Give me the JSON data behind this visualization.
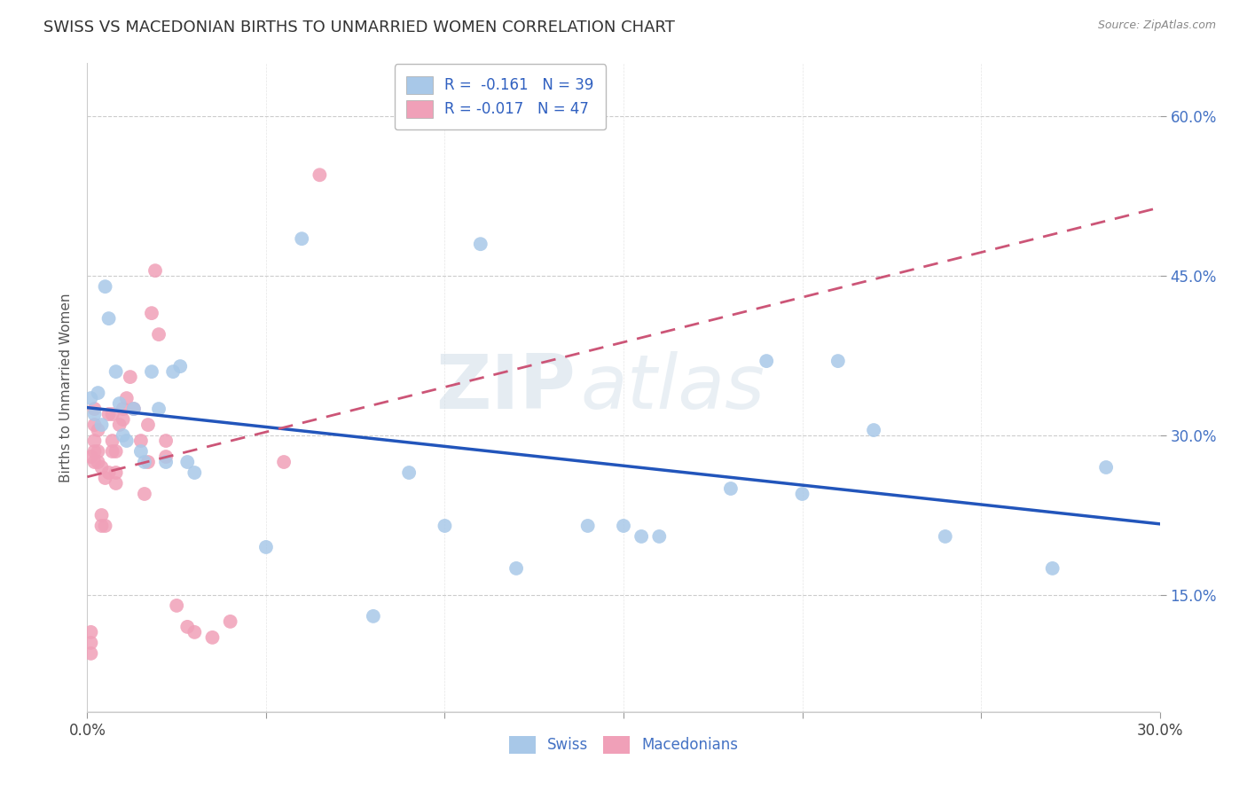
{
  "title": "SWISS VS MACEDONIAN BIRTHS TO UNMARRIED WOMEN CORRELATION CHART",
  "source": "Source: ZipAtlas.com",
  "ylabel": "Births to Unmarried Women",
  "xlim": [
    0.0,
    0.3
  ],
  "ylim": [
    0.04,
    0.65
  ],
  "xticks": [
    0.0,
    0.05,
    0.1,
    0.15,
    0.2,
    0.25,
    0.3
  ],
  "xtick_labels": [
    "0.0%",
    "",
    "",
    "",
    "",
    "",
    "30.0%"
  ],
  "ytick_positions": [
    0.15,
    0.3,
    0.45,
    0.6
  ],
  "ytick_labels": [
    "15.0%",
    "30.0%",
    "45.0%",
    "60.0%"
  ],
  "R_swiss": -0.161,
  "N_swiss": 39,
  "R_macedonian": -0.017,
  "N_macedonian": 47,
  "swiss_color": "#a8c8e8",
  "macedonian_color": "#f0a0b8",
  "trend_swiss_color": "#2255bb",
  "trend_macedonian_color": "#cc5577",
  "background_color": "#ffffff",
  "watermark": "ZIPatlas",
  "swiss_x": [
    0.001,
    0.002,
    0.003,
    0.004,
    0.005,
    0.006,
    0.008,
    0.009,
    0.01,
    0.011,
    0.013,
    0.015,
    0.016,
    0.018,
    0.02,
    0.022,
    0.024,
    0.026,
    0.028,
    0.03,
    0.05,
    0.06,
    0.08,
    0.09,
    0.1,
    0.11,
    0.12,
    0.14,
    0.155,
    0.18,
    0.19,
    0.21,
    0.22,
    0.27,
    0.285,
    0.15,
    0.16,
    0.2,
    0.24
  ],
  "swiss_y": [
    0.335,
    0.32,
    0.34,
    0.31,
    0.44,
    0.41,
    0.36,
    0.33,
    0.3,
    0.295,
    0.325,
    0.285,
    0.275,
    0.36,
    0.325,
    0.275,
    0.36,
    0.365,
    0.275,
    0.265,
    0.195,
    0.485,
    0.13,
    0.265,
    0.215,
    0.48,
    0.175,
    0.215,
    0.205,
    0.25,
    0.37,
    0.37,
    0.305,
    0.175,
    0.27,
    0.215,
    0.205,
    0.245,
    0.205
  ],
  "macedonian_x": [
    0.001,
    0.001,
    0.001,
    0.001,
    0.002,
    0.002,
    0.002,
    0.002,
    0.002,
    0.003,
    0.003,
    0.003,
    0.004,
    0.004,
    0.004,
    0.005,
    0.005,
    0.006,
    0.006,
    0.007,
    0.007,
    0.007,
    0.008,
    0.008,
    0.008,
    0.009,
    0.01,
    0.01,
    0.011,
    0.012,
    0.013,
    0.015,
    0.016,
    0.017,
    0.017,
    0.018,
    0.019,
    0.02,
    0.022,
    0.022,
    0.025,
    0.028,
    0.03,
    0.035,
    0.04,
    0.055,
    0.065
  ],
  "macedonian_y": [
    0.095,
    0.105,
    0.115,
    0.28,
    0.275,
    0.285,
    0.295,
    0.31,
    0.325,
    0.275,
    0.285,
    0.305,
    0.215,
    0.225,
    0.27,
    0.215,
    0.26,
    0.265,
    0.32,
    0.285,
    0.295,
    0.32,
    0.255,
    0.265,
    0.285,
    0.31,
    0.315,
    0.325,
    0.335,
    0.355,
    0.325,
    0.295,
    0.245,
    0.275,
    0.31,
    0.415,
    0.455,
    0.395,
    0.28,
    0.295,
    0.14,
    0.12,
    0.115,
    0.11,
    0.125,
    0.275,
    0.545
  ]
}
